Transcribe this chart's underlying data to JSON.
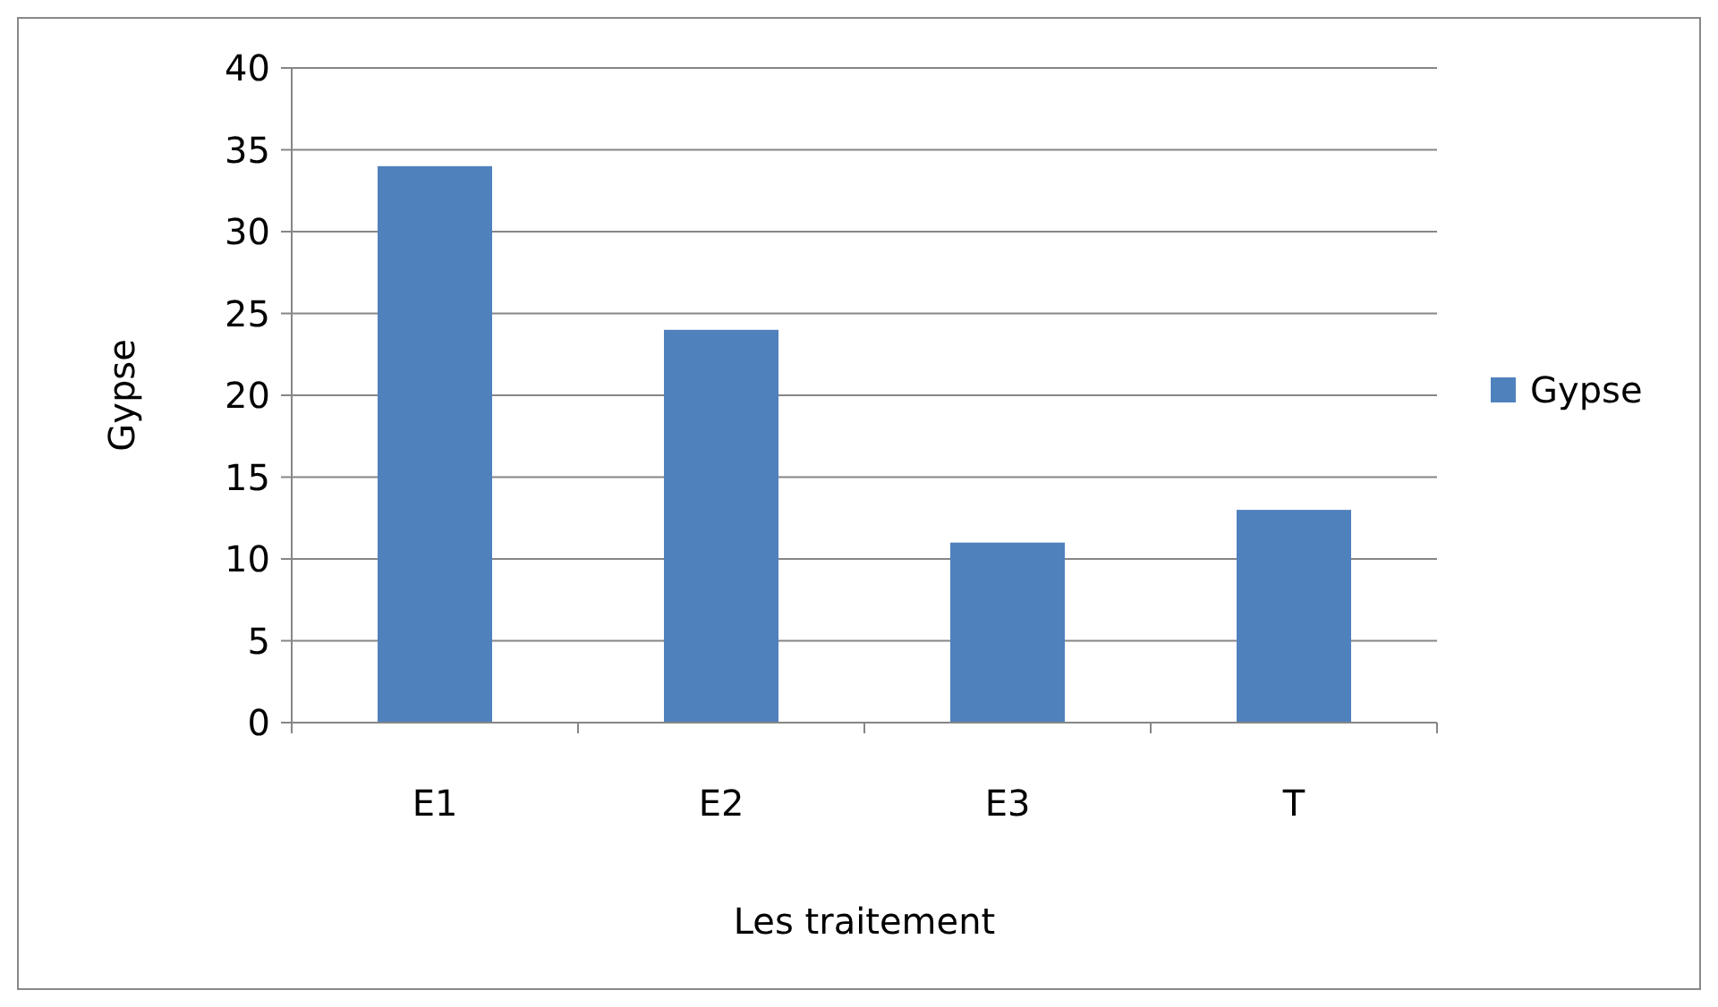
{
  "chart_data": {
    "type": "bar",
    "xlabel": "Les traitement",
    "ylabel": "Gypse",
    "categories": [
      "E1",
      "E2",
      "E3",
      "T"
    ],
    "series": [
      {
        "name": "Gypse",
        "color": "#4f81bd",
        "values": [
          34,
          24,
          11,
          13
        ]
      }
    ],
    "ylim": [
      0,
      40
    ],
    "yticks": [
      0,
      5,
      10,
      15,
      20,
      25,
      30,
      35,
      40
    ],
    "grid": "y",
    "legend": "right"
  }
}
